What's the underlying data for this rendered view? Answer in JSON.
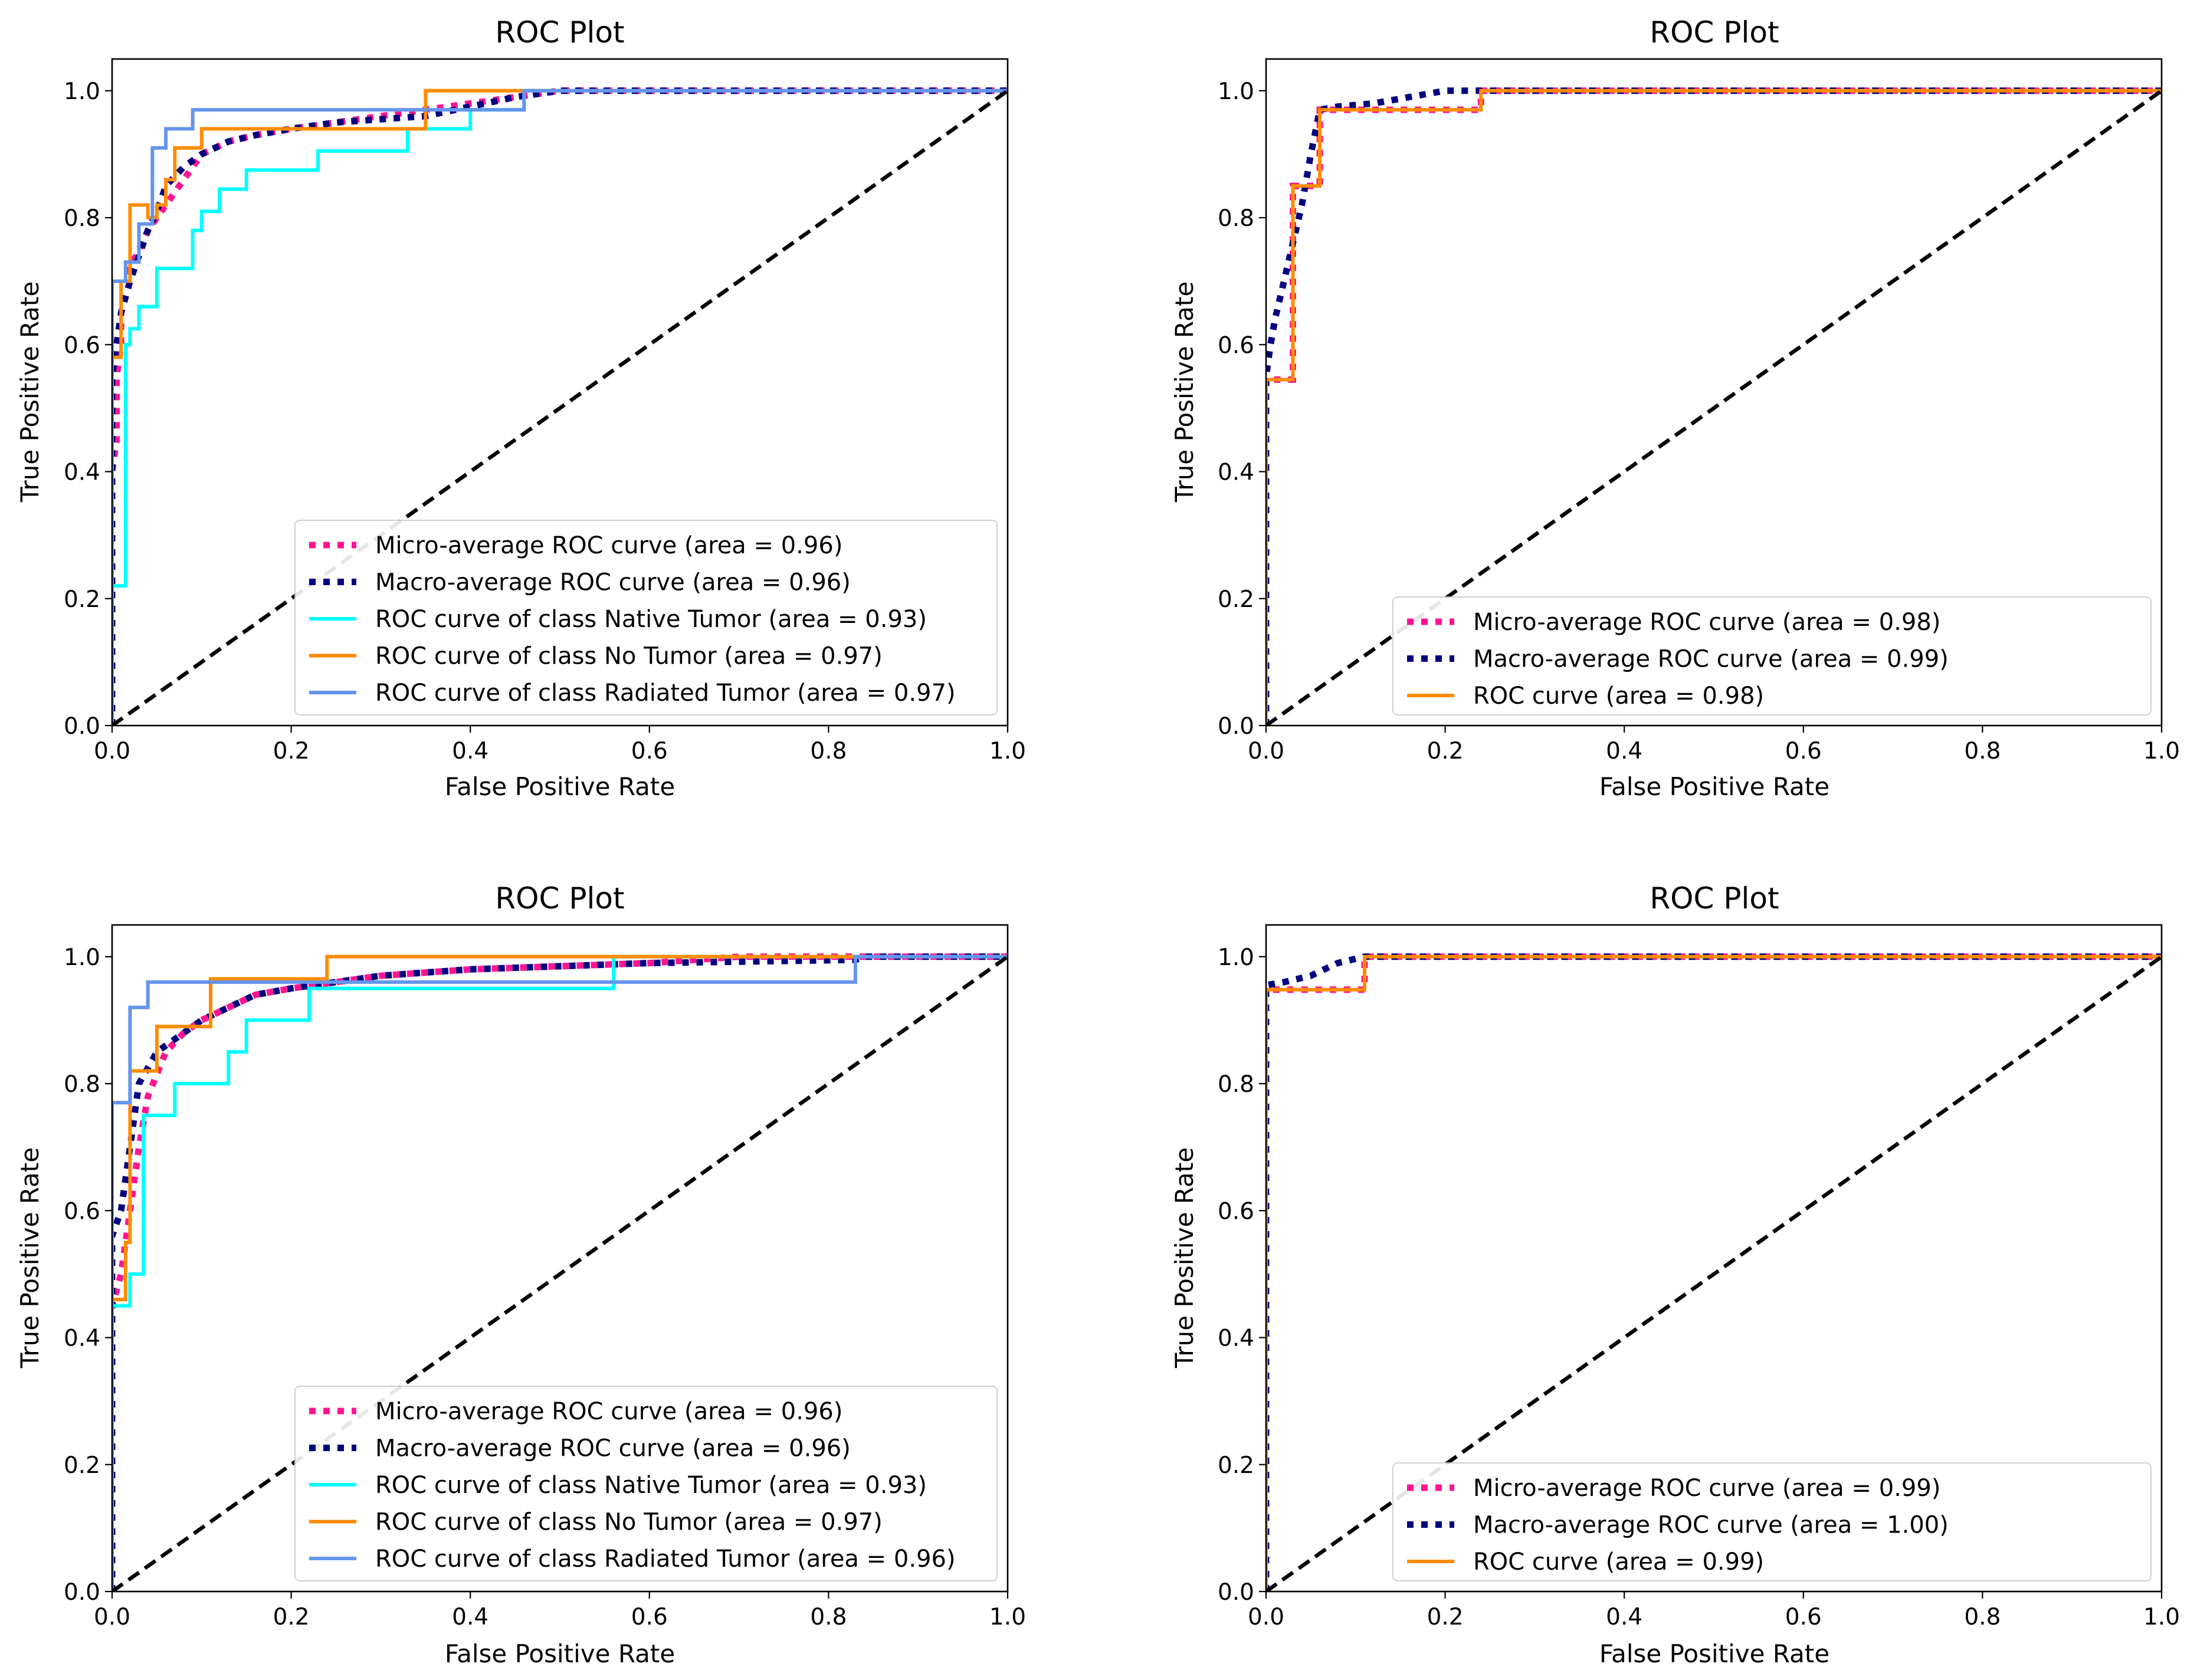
{
  "colors": {
    "micro": "#ff1493",
    "macro": "#000080",
    "native": "#00ffff",
    "no_tumor": "#ff8c00",
    "radiated": "#6495ed",
    "roc": "#ff8c00",
    "chance": "#000000"
  },
  "chart_data": [
    {
      "type": "line",
      "title": "ROC Plot",
      "xlabel": "False Positive Rate",
      "ylabel": "True Positive Rate",
      "xlim": [
        0.0,
        1.0
      ],
      "ylim": [
        0.0,
        1.05
      ],
      "xticks": [
        "0.0",
        "0.2",
        "0.4",
        "0.6",
        "0.8",
        "1.0"
      ],
      "yticks": [
        "0.0",
        "0.2",
        "0.4",
        "0.6",
        "0.8",
        "1.0"
      ],
      "legend_position": "lower-right",
      "series": [
        {
          "name": "Micro-average ROC curve (area = 0.96)",
          "color_key": "micro",
          "style": "dotted",
          "x": [
            0,
            0,
            0.005,
            0.005,
            0.01,
            0.01,
            0.02,
            0.02,
            0.03,
            0.04,
            0.05,
            0.06,
            0.08,
            0.1,
            0.13,
            0.16,
            0.2,
            0.25,
            0.3,
            0.35,
            0.4,
            0.45,
            0.5,
            1.0
          ],
          "y": [
            0,
            0.4,
            0.45,
            0.55,
            0.6,
            0.65,
            0.7,
            0.72,
            0.75,
            0.78,
            0.8,
            0.82,
            0.86,
            0.9,
            0.92,
            0.93,
            0.94,
            0.95,
            0.96,
            0.97,
            0.98,
            0.99,
            1.0,
            1.0
          ]
        },
        {
          "name": "Macro-average ROC curve (area = 0.96)",
          "color_key": "macro",
          "style": "dotted",
          "x": [
            0,
            0,
            0.005,
            0.01,
            0.02,
            0.03,
            0.04,
            0.05,
            0.06,
            0.08,
            0.1,
            0.13,
            0.16,
            0.2,
            0.25,
            0.3,
            0.35,
            0.4,
            0.45,
            0.5,
            1.0
          ],
          "y": [
            0,
            0.55,
            0.6,
            0.65,
            0.7,
            0.74,
            0.78,
            0.81,
            0.85,
            0.88,
            0.9,
            0.92,
            0.93,
            0.94,
            0.95,
            0.955,
            0.96,
            0.975,
            0.99,
            1.0,
            1.0
          ]
        },
        {
          "name": "ROC curve of class Native Tumor (area = 0.93)",
          "color_key": "native",
          "style": "solid",
          "x": [
            0,
            0,
            0.015,
            0.015,
            0.02,
            0.02,
            0.03,
            0.03,
            0.05,
            0.05,
            0.09,
            0.09,
            0.1,
            0.1,
            0.12,
            0.12,
            0.15,
            0.15,
            0.23,
            0.23,
            0.33,
            0.33,
            0.4,
            0.4,
            0.46,
            0.46,
            1.0
          ],
          "y": [
            0,
            0.22,
            0.22,
            0.6,
            0.6,
            0.625,
            0.625,
            0.66,
            0.66,
            0.72,
            0.72,
            0.78,
            0.78,
            0.81,
            0.81,
            0.845,
            0.845,
            0.875,
            0.875,
            0.905,
            0.905,
            0.94,
            0.94,
            0.97,
            0.97,
            1.0,
            1.0
          ]
        },
        {
          "name": "ROC curve of class No Tumor (area = 0.97)",
          "color_key": "no_tumor",
          "style": "solid",
          "x": [
            0,
            0,
            0.01,
            0.01,
            0.02,
            0.02,
            0.04,
            0.04,
            0.05,
            0.05,
            0.06,
            0.06,
            0.07,
            0.07,
            0.1,
            0.1,
            0.35,
            0.35,
            1.0
          ],
          "y": [
            0,
            0.58,
            0.58,
            0.7,
            0.7,
            0.82,
            0.82,
            0.8,
            0.8,
            0.82,
            0.82,
            0.86,
            0.86,
            0.91,
            0.91,
            0.94,
            0.94,
            1.0,
            1.0
          ]
        },
        {
          "name": "ROC curve of class Radiated Tumor (area = 0.97)",
          "color_key": "radiated",
          "style": "solid",
          "x": [
            0,
            0,
            0.015,
            0.015,
            0.03,
            0.03,
            0.045,
            0.045,
            0.06,
            0.06,
            0.09,
            0.09,
            0.46,
            0.46,
            1.0
          ],
          "y": [
            0,
            0.7,
            0.7,
            0.73,
            0.73,
            0.79,
            0.79,
            0.91,
            0.91,
            0.94,
            0.94,
            0.97,
            0.97,
            1.0,
            1.0
          ]
        },
        {
          "name": "",
          "color_key": "chance",
          "style": "dashed",
          "x": [
            0,
            1
          ],
          "y": [
            0,
            1
          ]
        }
      ]
    },
    {
      "type": "line",
      "title": "ROC Plot",
      "xlabel": "False Positive Rate",
      "ylabel": "True Positive Rate",
      "xlim": [
        0.0,
        1.0
      ],
      "ylim": [
        0.0,
        1.05
      ],
      "xticks": [
        "0.0",
        "0.2",
        "0.4",
        "0.6",
        "0.8",
        "1.0"
      ],
      "yticks": [
        "0.0",
        "0.2",
        "0.4",
        "0.6",
        "0.8",
        "1.0"
      ],
      "legend_position": "lower-right",
      "series": [
        {
          "name": "Micro-average ROC curve (area = 0.98)",
          "color_key": "micro",
          "style": "dotted",
          "x": [
            0,
            0,
            0.005,
            0.005,
            0.03,
            0.03,
            0.06,
            0.06,
            0.24,
            0.24,
            1.0
          ],
          "y": [
            0,
            0.54,
            0.54,
            0.545,
            0.545,
            0.85,
            0.85,
            0.97,
            0.97,
            1.0,
            1.0
          ]
        },
        {
          "name": "Macro-average ROC curve (area = 0.99)",
          "color_key": "macro",
          "style": "dotted",
          "x": [
            0,
            0,
            0.005,
            0.01,
            0.02,
            0.03,
            0.04,
            0.05,
            0.06,
            0.08,
            0.12,
            0.16,
            0.2,
            0.25,
            1.0
          ],
          "y": [
            0,
            0.55,
            0.6,
            0.64,
            0.7,
            0.76,
            0.82,
            0.9,
            0.97,
            0.975,
            0.98,
            0.99,
            1.0,
            1.0,
            1.0
          ]
        },
        {
          "name": "ROC curve (area = 0.98)",
          "color_key": "roc",
          "style": "solid",
          "x": [
            0,
            0,
            0.03,
            0.03,
            0.06,
            0.06,
            0.24,
            0.24,
            1.0
          ],
          "y": [
            0,
            0.545,
            0.545,
            0.85,
            0.85,
            0.97,
            0.97,
            1.0,
            1.0
          ]
        },
        {
          "name": "",
          "color_key": "chance",
          "style": "dashed",
          "x": [
            0,
            1
          ],
          "y": [
            0,
            1
          ]
        }
      ]
    },
    {
      "type": "line",
      "title": "ROC Plot",
      "xlabel": "False Positive Rate",
      "ylabel": "True Positive Rate",
      "xlim": [
        0.0,
        1.0
      ],
      "ylim": [
        0.0,
        1.05
      ],
      "xticks": [
        "0.0",
        "0.2",
        "0.4",
        "0.6",
        "0.8",
        "1.0"
      ],
      "yticks": [
        "0.0",
        "0.2",
        "0.4",
        "0.6",
        "0.8",
        "1.0"
      ],
      "legend_position": "lower-right",
      "series": [
        {
          "name": "Micro-average ROC curve (area = 0.96)",
          "color_key": "micro",
          "style": "dotted",
          "x": [
            0,
            0,
            0.01,
            0.02,
            0.03,
            0.04,
            0.06,
            0.08,
            0.1,
            0.13,
            0.16,
            0.2,
            0.25,
            0.3,
            0.4,
            0.5,
            0.6,
            0.7,
            1.0
          ],
          "y": [
            0,
            0.45,
            0.5,
            0.6,
            0.7,
            0.78,
            0.85,
            0.88,
            0.9,
            0.92,
            0.94,
            0.95,
            0.96,
            0.97,
            0.98,
            0.985,
            0.99,
            1.0,
            1.0
          ]
        },
        {
          "name": "Macro-average ROC curve (area = 0.96)",
          "color_key": "macro",
          "style": "dotted",
          "x": [
            0,
            0,
            0.01,
            0.02,
            0.03,
            0.05,
            0.08,
            0.1,
            0.13,
            0.16,
            0.2,
            0.25,
            0.3,
            0.4,
            0.5,
            0.6,
            0.83,
            0.84,
            1.0
          ],
          "y": [
            0,
            0.56,
            0.6,
            0.7,
            0.8,
            0.85,
            0.88,
            0.9,
            0.92,
            0.94,
            0.95,
            0.96,
            0.97,
            0.98,
            0.985,
            0.99,
            0.995,
            1.0,
            1.0
          ]
        },
        {
          "name": "ROC curve of class Native Tumor (area = 0.93)",
          "color_key": "native",
          "style": "solid",
          "x": [
            0,
            0,
            0.02,
            0.02,
            0.035,
            0.035,
            0.04,
            0.04,
            0.07,
            0.07,
            0.13,
            0.13,
            0.15,
            0.15,
            0.22,
            0.22,
            0.56,
            0.56,
            1.0
          ],
          "y": [
            0,
            0.45,
            0.45,
            0.5,
            0.5,
            0.75,
            0.75,
            0.75,
            0.75,
            0.8,
            0.8,
            0.85,
            0.85,
            0.9,
            0.9,
            0.95,
            0.95,
            1.0,
            1.0
          ]
        },
        {
          "name": "ROC curve of class No Tumor (area = 0.97)",
          "color_key": "no_tumor",
          "style": "solid",
          "x": [
            0,
            0,
            0.015,
            0.015,
            0.02,
            0.02,
            0.03,
            0.03,
            0.05,
            0.05,
            0.07,
            0.07,
            0.11,
            0.11,
            0.24,
            0.24,
            1.0
          ],
          "y": [
            0,
            0.46,
            0.46,
            0.55,
            0.55,
            0.82,
            0.82,
            0.82,
            0.82,
            0.89,
            0.89,
            0.89,
            0.89,
            0.965,
            0.965,
            1.0,
            1.0
          ]
        },
        {
          "name": "ROC curve of class Radiated Tumor (area = 0.96)",
          "color_key": "radiated",
          "style": "solid",
          "x": [
            0,
            0,
            0.02,
            0.02,
            0.04,
            0.04,
            0.83,
            0.83,
            1.0
          ],
          "y": [
            0,
            0.77,
            0.77,
            0.92,
            0.92,
            0.96,
            0.96,
            1.0,
            1.0
          ]
        },
        {
          "name": "",
          "color_key": "chance",
          "style": "dashed",
          "x": [
            0,
            1
          ],
          "y": [
            0,
            1
          ]
        }
      ]
    },
    {
      "type": "line",
      "title": "ROC Plot",
      "xlabel": "False Positive Rate",
      "ylabel": "True Positive Rate",
      "xlim": [
        0.0,
        1.0
      ],
      "ylim": [
        0.0,
        1.05
      ],
      "xticks": [
        "0.0",
        "0.2",
        "0.4",
        "0.6",
        "0.8",
        "1.0"
      ],
      "yticks": [
        "0.0",
        "0.2",
        "0.4",
        "0.6",
        "0.8",
        "1.0"
      ],
      "legend_position": "lower-right",
      "series": [
        {
          "name": "Micro-average ROC curve (area = 0.99)",
          "color_key": "micro",
          "style": "dotted",
          "x": [
            0,
            0,
            0.005,
            0.005,
            0.11,
            0.11,
            1.0
          ],
          "y": [
            0,
            0.945,
            0.945,
            0.948,
            0.948,
            1.0,
            1.0
          ]
        },
        {
          "name": "Macro-average ROC curve (area = 1.00)",
          "color_key": "macro",
          "style": "dotted",
          "x": [
            0,
            0,
            0.02,
            0.05,
            0.08,
            0.11,
            1.0
          ],
          "y": [
            0,
            0.955,
            0.96,
            0.97,
            0.99,
            1.0,
            1.0
          ]
        },
        {
          "name": "ROC curve (area = 0.99)",
          "color_key": "roc",
          "style": "solid",
          "x": [
            0,
            0,
            0.11,
            0.11,
            1.0
          ],
          "y": [
            0,
            0.948,
            0.948,
            1.0,
            1.0
          ]
        },
        {
          "name": "",
          "color_key": "chance",
          "style": "dashed",
          "x": [
            0,
            1
          ],
          "y": [
            0,
            1
          ]
        }
      ]
    }
  ]
}
